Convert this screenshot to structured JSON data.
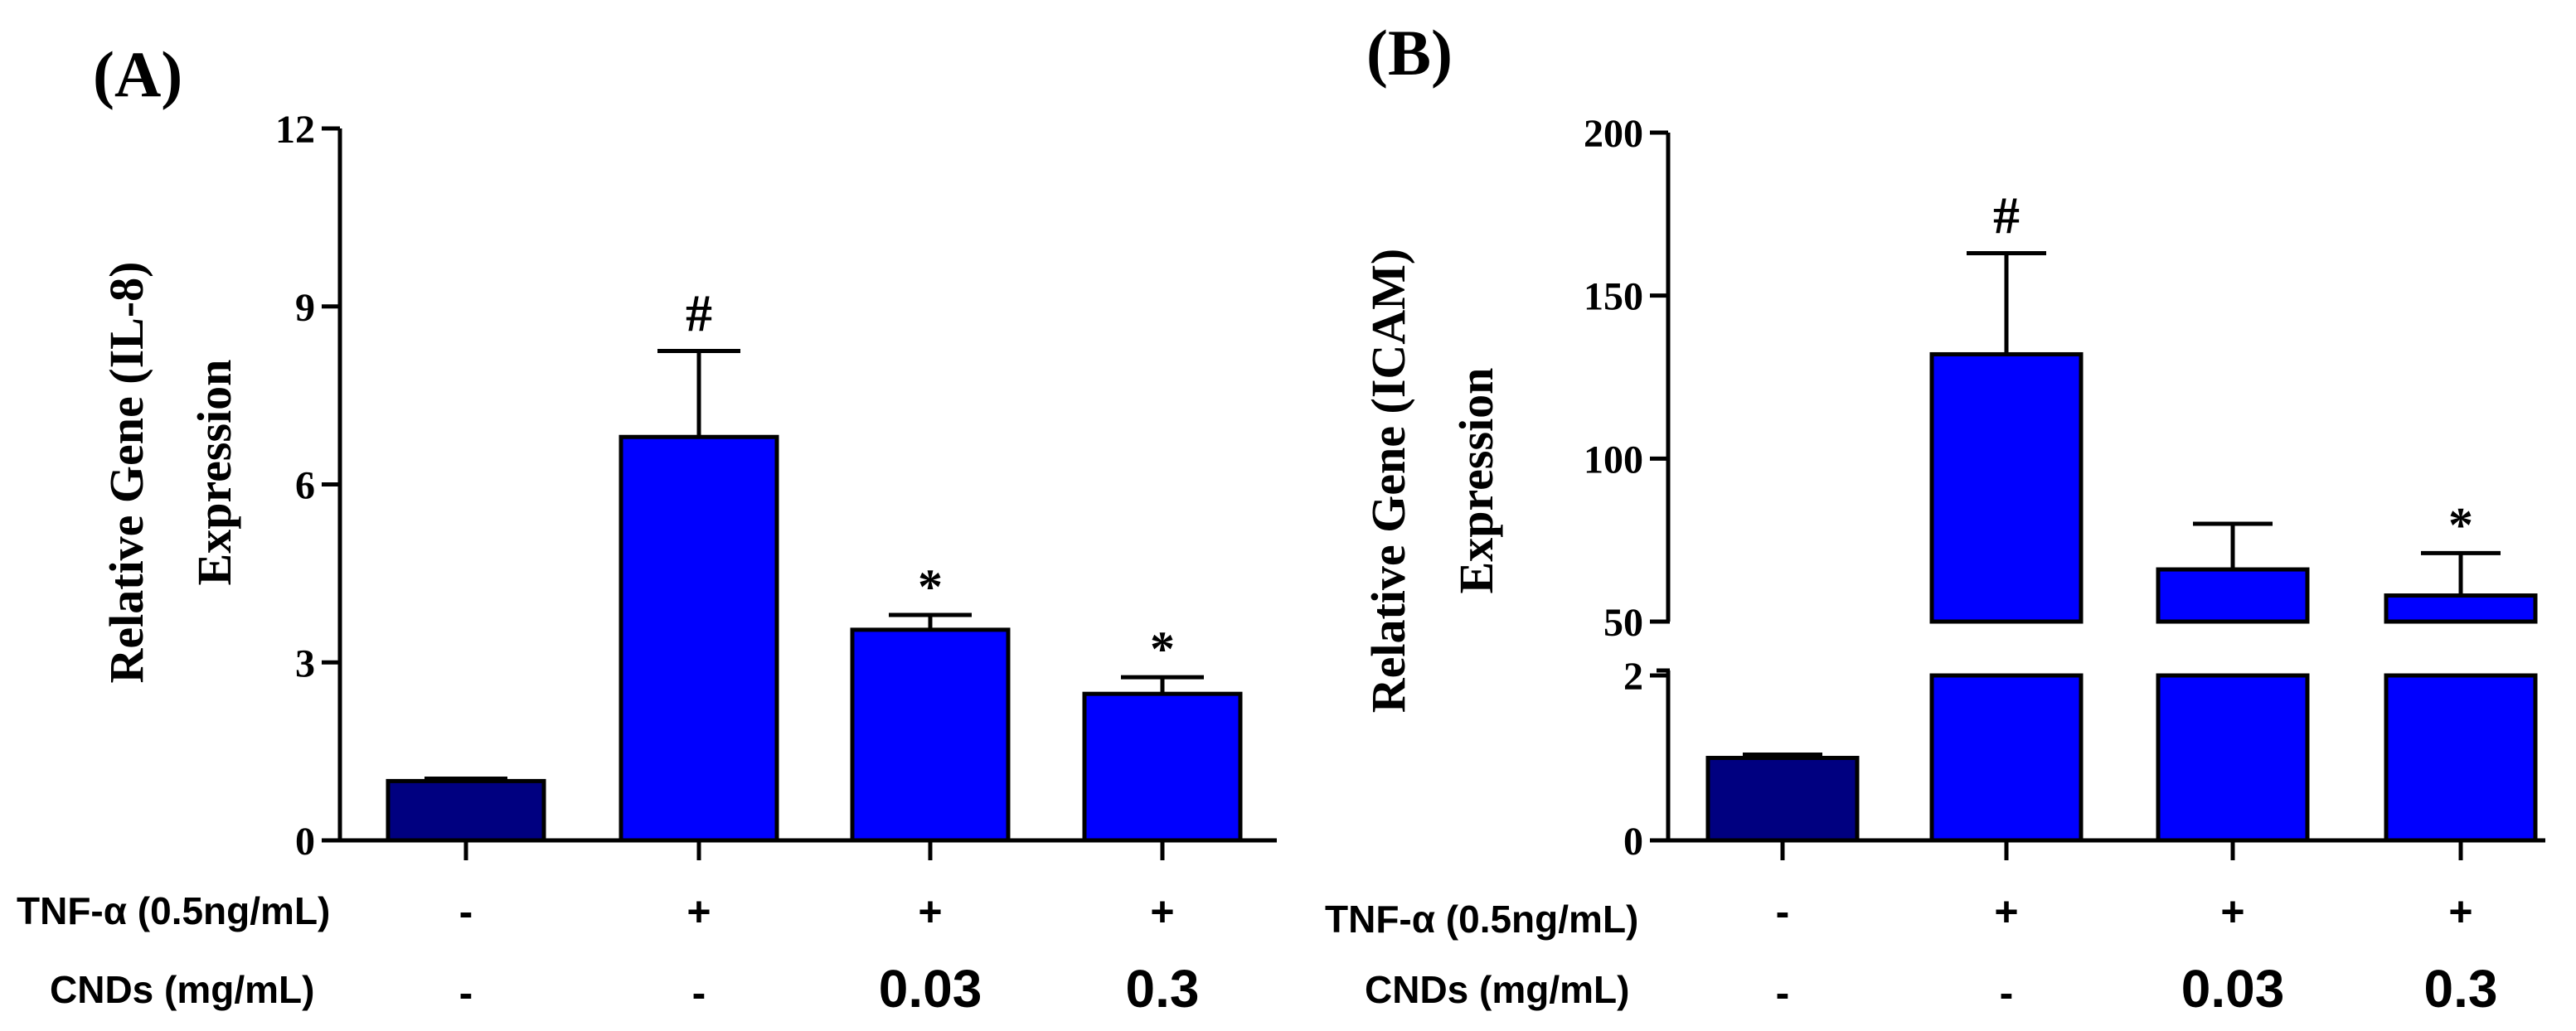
{
  "colors": {
    "control_bar": "#000080",
    "treated_bar": "#0000ff",
    "axis": "#000000"
  },
  "row_labels": {
    "tnf": "TNF-α (0.5ng/mL)",
    "cnds": "CNDs (mg/mL)"
  },
  "chart_data": [
    {
      "panel_label": "(A)",
      "type": "bar",
      "ylabel_line1": "Relative Gene (IL-8)",
      "ylabel_line2": "Expression",
      "ylim": [
        0,
        12
      ],
      "yticks": [
        0,
        3,
        6,
        9,
        12
      ],
      "ytick_labels": [
        "0",
        "3",
        "6",
        "9",
        "12"
      ],
      "tnf_labels": [
        "-",
        "+",
        "+",
        "+"
      ],
      "cnds_labels": [
        "-",
        "-",
        "0.03",
        "0.3"
      ],
      "values": [
        1.0,
        6.8,
        3.55,
        2.47
      ],
      "errors": [
        0.04,
        1.45,
        0.25,
        0.28
      ],
      "annotations": [
        "",
        "#",
        "*",
        "*"
      ],
      "bar_colors": [
        "control_bar",
        "treated_bar",
        "treated_bar",
        "treated_bar"
      ]
    },
    {
      "panel_label": "(B)",
      "type": "bar",
      "broken_axis": true,
      "ylabel_line1": "Relative Gene (ICAM)",
      "ylabel_line2": "Expression",
      "lower_range": [
        0,
        2
      ],
      "upper_range": [
        50,
        200
      ],
      "yticks_lower": [
        0,
        2
      ],
      "ytick_labels_lower": [
        "0",
        "2"
      ],
      "yticks_upper": [
        50,
        100,
        150,
        200
      ],
      "ytick_labels_upper": [
        "50",
        "100",
        "150",
        "200"
      ],
      "tnf_labels": [
        "-",
        "+",
        "+",
        "+"
      ],
      "cnds_labels": [
        "-",
        "-",
        "0.03",
        "0.3"
      ],
      "values": [
        1.0,
        132,
        66,
        58
      ],
      "errors": [
        0.04,
        31,
        14,
        13
      ],
      "annotations": [
        "",
        "#",
        "",
        "*"
      ],
      "bar_colors": [
        "control_bar",
        "treated_bar",
        "treated_bar",
        "treated_bar"
      ]
    }
  ]
}
